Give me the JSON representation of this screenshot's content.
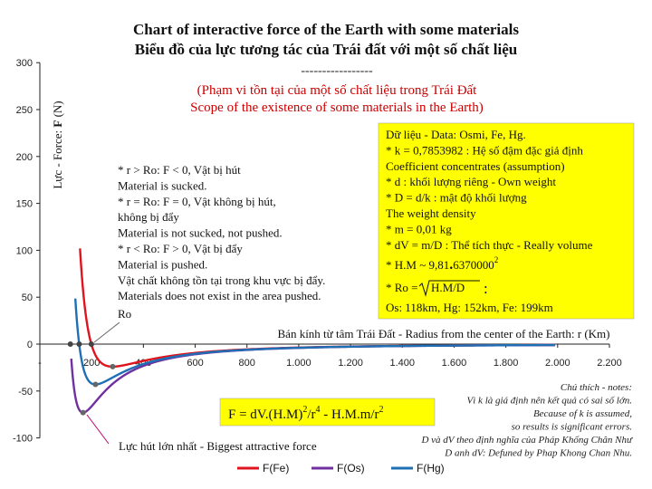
{
  "chart_data": {
    "type": "line",
    "title": "Chart of interactive force of the Earth with some materials",
    "subtitle": "Biểu đồ của lực tương tác của Trái đất với một số chất liệu",
    "separator": "-----------------",
    "scope_vi": "(Phạm vi tồn tại của một số chất liệu trong Trái Đất",
    "scope_en": "Scope of the existence of some materials in the Earth)",
    "xlabel": "Bán kính từ tâm Trái Đất - Radius from the center of the Earth: r (Km)",
    "ylabel_prefix": "Lực - Force: ",
    "ylabel_symbol": "F",
    "ylabel_unit": " (N)",
    "xlim": [
      0,
      2200
    ],
    "ylim": [
      -100,
      300
    ],
    "x_ticks": [
      0,
      200,
      400,
      600,
      800,
      1000,
      1200,
      1400,
      1600,
      1800,
      2000,
      2200
    ],
    "x_tick_labels": [
      "-",
      "200",
      "400",
      "600",
      "800",
      "1.000",
      "1.200",
      "1.400",
      "1.600",
      "1.800",
      "2.000",
      "2.200"
    ],
    "y_ticks": [
      -100,
      -50,
      0,
      50,
      100,
      150,
      200,
      250,
      300
    ],
    "y_tick_labels": [
      "-100",
      "-50",
      "0",
      "50",
      "100",
      "150",
      "200",
      "250",
      "300"
    ],
    "series": [
      {
        "name": "F(Fe)",
        "color": "#e0141e",
        "ro": 199,
        "min_r": 300,
        "min_f": -24,
        "x_end": 2000
      },
      {
        "name": "F(Os)",
        "color": "#7030a0",
        "ro": 118,
        "min_r": 200,
        "min_f": -73,
        "x_end": 2000
      },
      {
        "name": "F(Hg)",
        "color": "#1f6fb5",
        "ro": 152,
        "min_r": 255,
        "min_f": -43,
        "x_end": 2000
      }
    ],
    "legend_position": "bottom"
  },
  "notes": {
    "lines": [
      "* r > Ro:  F < 0, Vật bị hút",
      "Material is sucked.",
      "* r = Ro:  F = 0, Vật không bị hút,",
      "không bị đẩy",
      "Material is not sucked, not pushed.",
      "* r < Ro:  F > 0, Vật bị đẩy",
      "Material is pushed.",
      "Vật chất không tồn tại trong khu vực bị đẩy.",
      "Materials does not exist in the area pushed."
    ],
    "ro_label": "Ro"
  },
  "data_box": {
    "lines": [
      "Dữ liệu - Data: Osmi, Fe, Hg.",
      "* k = 0,7853982 :  Hệ số đậm đặc giả định",
      "Coefficient concentrates (assumption)",
      "* d : khối lượng riêng - Own weight",
      "* D = d/k : mật độ khối lượng",
      "The weight density",
      "* m = 0,01 kg",
      "* dV = m/D : Thể tích thực - Really volume"
    ],
    "hm_prefix": "* H.M ~ 9,81",
    "hm_dot": ".",
    "hm_value": "6370000",
    "hm_exp": "2",
    "ro_prefix": "* Ro =",
    "ro_radicand": "H.M/D",
    "ro_suffix": ":",
    "results": "Os: 118km, Hg: 152km, Fe: 199km",
    "color": "#ffff00"
  },
  "formula": {
    "part1": "F = dV.(H.M)",
    "exp1": "2",
    "part2": "/r",
    "exp2": "4",
    "part3": " - H.M.m/r",
    "exp3": "2"
  },
  "annotation": "Lực hút lớn nhất - Biggest attractive force",
  "footnote": {
    "lines": [
      "Chú thích - notes:",
      "Vì k là giá định nên kết quả có sai số lớn.",
      "Because of k is assumed,",
      "so results is significant errors.",
      "D và dV theo định nghĩa của Pháp Khống Chân Như",
      "D anh dV: Defuned by Phap Khong Chan Nhu."
    ]
  }
}
